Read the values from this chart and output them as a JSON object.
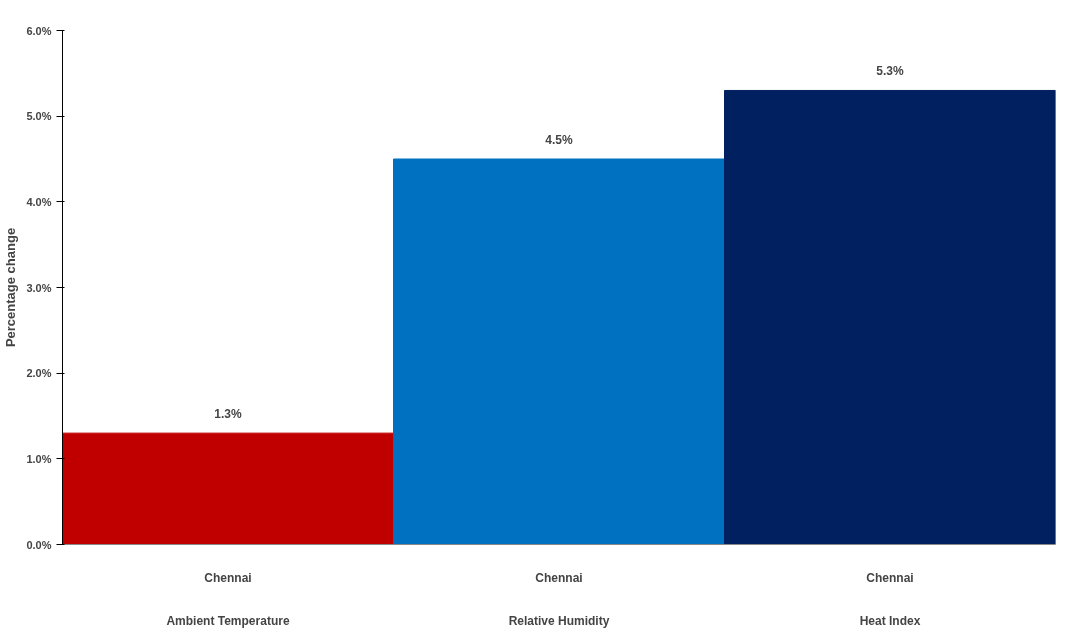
{
  "chart_data": {
    "type": "bar",
    "ylabel": "Percentage change",
    "categories": [
      "Chennai\nAmbient Temperature",
      "Chennai\nRelative Humidity",
      "Chennai\nHeat Index"
    ],
    "values": [
      1.3,
      4.5,
      5.3
    ],
    "colors": [
      "#c00000",
      "#0070c0",
      "#002060"
    ],
    "ylim": [
      0,
      6
    ],
    "yticks": [
      {
        "value": 0,
        "label": "0.0%"
      },
      {
        "value": 1,
        "label": "1.0%"
      },
      {
        "value": 2,
        "label": "2.0%"
      },
      {
        "value": 3,
        "label": "3.0%"
      },
      {
        "value": 4,
        "label": "4.0%"
      },
      {
        "value": 5,
        "label": "5.0%"
      },
      {
        "value": 6,
        "label": "6.0%"
      }
    ],
    "value_labels": [
      "1.3%",
      "4.5%",
      "5.3%"
    ],
    "grid": false
  }
}
